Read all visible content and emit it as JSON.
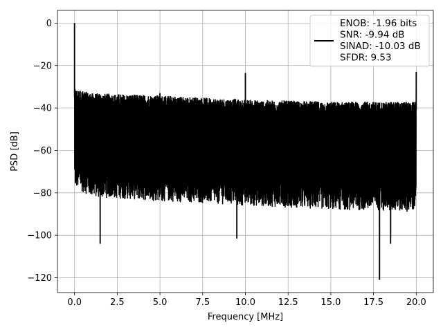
{
  "chart_data": {
    "type": "line",
    "title": "",
    "xlabel": "Frequency [MHz]",
    "ylabel": "PSD [dB]",
    "xlim": [
      -1.0,
      21.0
    ],
    "ylim": [
      -127,
      6
    ],
    "x_ticks": [
      0.0,
      2.5,
      5.0,
      7.5,
      10.0,
      12.5,
      15.0,
      17.5,
      20.0
    ],
    "x_tick_labels": [
      "0.0",
      "2.5",
      "5.0",
      "7.5",
      "10.0",
      "12.5",
      "15.0",
      "17.5",
      "20.0"
    ],
    "y_ticks": [
      0,
      -20,
      -40,
      -60,
      -80,
      -100,
      -120
    ],
    "y_tick_labels": [
      "0",
      "−20",
      "−40",
      "−60",
      "−80",
      "−100",
      "−120"
    ],
    "grid": true,
    "legend_position": "top-right",
    "series": [
      {
        "legend_lines": [
          "ENOB: -1.96 bits",
          "SNR: -9.94 dB",
          "SINAD: -10.03 dB",
          "SFDR: 9.53"
        ],
        "color": "#000000",
        "noise_floor": {
          "x_range": [
            0.0,
            20.0
          ],
          "upper_envelope_db": [
            [
              0.1,
              -33
            ],
            [
              1.0,
              -35
            ],
            [
              5.0,
              -36
            ],
            [
              10.0,
              -38
            ],
            [
              15.0,
              -39
            ],
            [
              20.0,
              -39
            ]
          ],
          "lower_envelope_db": [
            [
              0.1,
              -76
            ],
            [
              1.0,
              -80
            ],
            [
              5.0,
              -82
            ],
            [
              10.0,
              -84
            ],
            [
              15.0,
              -86
            ],
            [
              20.0,
              -87
            ]
          ]
        },
        "spurs": [
          {
            "x": 0.0,
            "y": 0
          },
          {
            "x": 5.0,
            "y": -33
          },
          {
            "x": 10.0,
            "y": -23.5
          },
          {
            "x": 20.0,
            "y": -23
          },
          {
            "x": 1.5,
            "y": -104
          },
          {
            "x": 9.5,
            "y": -101.5
          },
          {
            "x": 17.85,
            "y": -121
          },
          {
            "x": 18.5,
            "y": -104
          }
        ]
      }
    ]
  }
}
